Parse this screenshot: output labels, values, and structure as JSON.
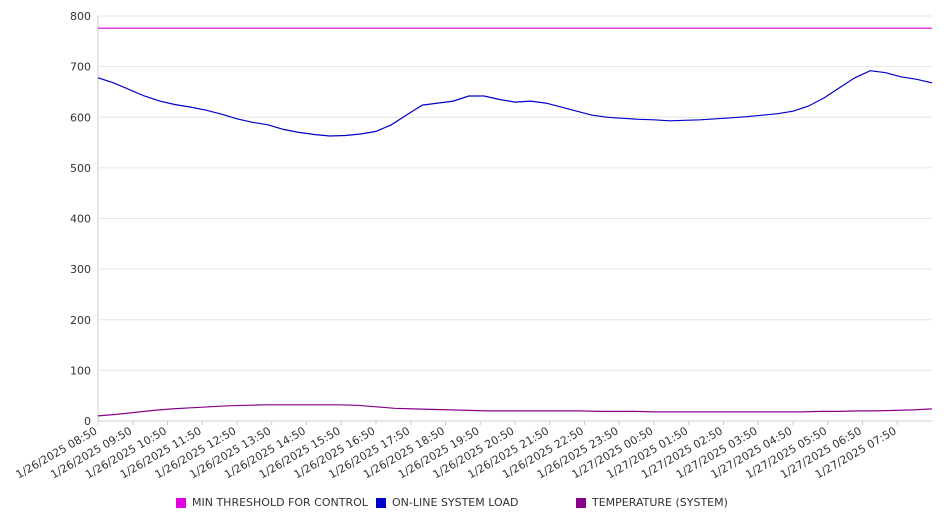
{
  "chart_data": {
    "type": "line",
    "y_ticks": [
      0,
      100,
      200,
      300,
      400,
      500,
      600,
      700,
      800
    ],
    "ylim": [
      0,
      800
    ],
    "grid": true,
    "legend_position": "bottom",
    "x_tick_labels": [
      "1/26/2025 08:50",
      "1/26/2025 09:50",
      "1/26/2025 10:50",
      "1/26/2025 11:50",
      "1/26/2025 12:50",
      "1/26/2025 13:50",
      "1/26/2025 14:50",
      "1/26/2025 15:50",
      "1/26/2025 16:50",
      "1/26/2025 17:50",
      "1/26/2025 18:50",
      "1/26/2025 19:50",
      "1/26/2025 20:50",
      "1/26/2025 21:50",
      "1/26/2025 22:50",
      "1/26/2025 23:50",
      "1/27/2025 00:50",
      "1/27/2025 01:50",
      "1/27/2025 02:50",
      "1/27/2025 03:50",
      "1/27/2025 04:50",
      "1/27/2025 05:50",
      "1/27/2025 06:50",
      "1/27/2025 07:50"
    ],
    "x_start": "1/26/2025 08:50",
    "x_end": "1/27/2025 08:50",
    "series": [
      {
        "name": "MIN THRESHOLD FOR CONTROL",
        "color": "#e000e0",
        "values": [
          776,
          776
        ]
      },
      {
        "name": "ON-LINE SYSTEM LOAD",
        "color": "#0000cc",
        "values": [
          678,
          668,
          655,
          642,
          632,
          625,
          620,
          614,
          606,
          597,
          590,
          585,
          576,
          570,
          566,
          563,
          564,
          567,
          572,
          585,
          605,
          624,
          628,
          632,
          642,
          642,
          635,
          630,
          632,
          628,
          620,
          612,
          604,
          600,
          598,
          596,
          595,
          593,
          594,
          595,
          597,
          599,
          601,
          604,
          607,
          612,
          622,
          638,
          658,
          678,
          692,
          688,
          680,
          675,
          668
        ]
      },
      {
        "name": "TEMPERATURE (SYSTEM)",
        "color": "#880088",
        "values": [
          10,
          13,
          17,
          21,
          24,
          26,
          28,
          30,
          31,
          32,
          32,
          32,
          32,
          32,
          31,
          28,
          25,
          24,
          23,
          22,
          21,
          20,
          20,
          20,
          20,
          20,
          20,
          19,
          19,
          19,
          18,
          18,
          18,
          18,
          18,
          18,
          18,
          18,
          18,
          19,
          19,
          20,
          20,
          21,
          22,
          24
        ]
      }
    ]
  }
}
